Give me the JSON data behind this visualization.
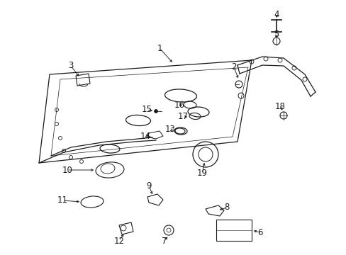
{
  "background_color": "#ffffff",
  "fig_width": 4.89,
  "fig_height": 3.6,
  "dpi": 100,
  "line_color": "#1a1a1a",
  "label_fontsize": 8.5
}
